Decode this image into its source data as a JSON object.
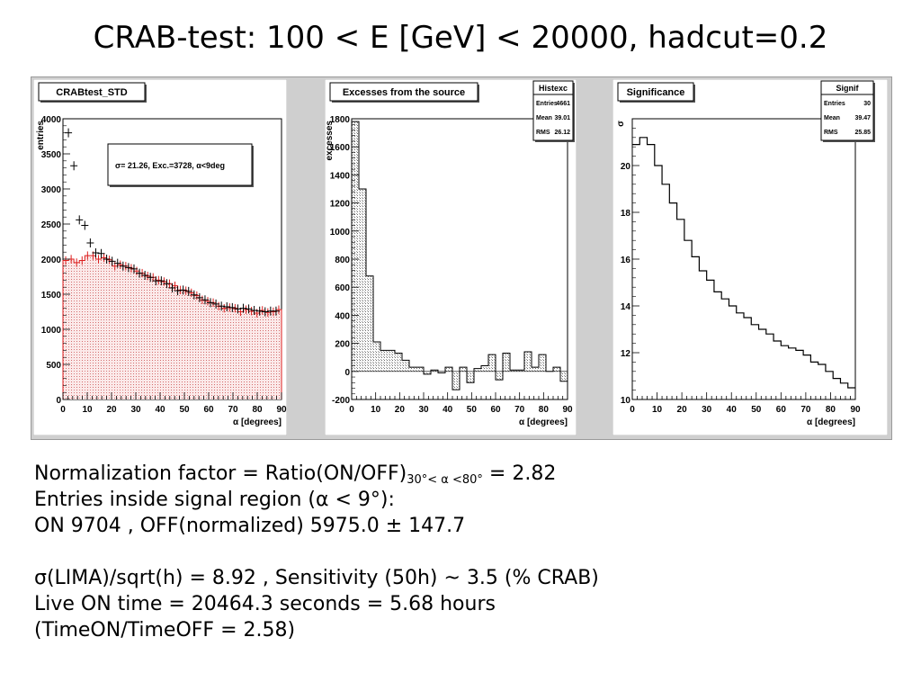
{
  "title": "CRAB-test: 100 < E [GeV] < 20000, hadcut=0.2",
  "chart_data": [
    {
      "type": "bar",
      "title": "CRABtest_STD",
      "xlabel": "α [degrees]",
      "ylabel": "entries",
      "xlim": [
        0,
        90
      ],
      "ylim": [
        0,
        4000
      ],
      "x_ticks": [
        0,
        10,
        20,
        30,
        40,
        50,
        60,
        70,
        80,
        90
      ],
      "y_ticks": [
        0,
        500,
        1000,
        1500,
        2000,
        2500,
        3000,
        3500,
        4000
      ],
      "annotation": "σ=    21.26, Exc.=3728, α<9deg",
      "colors": {
        "fill": "#f2c4c4",
        "line": "#dd1e1e",
        "points": "#000000"
      },
      "series": [
        {
          "values": [
            1980,
            2000,
            1950,
            1980,
            2050,
            2050,
            2000,
            2020,
            1990,
            1900,
            1920,
            1900,
            1870,
            1830,
            1800,
            1760,
            1740,
            1700,
            1680,
            1650,
            1620,
            1560,
            1550,
            1520,
            1480,
            1420,
            1400,
            1380,
            1330,
            1300,
            1310,
            1300,
            1250,
            1280,
            1260,
            1230,
            1270,
            1240,
            1250,
            1280
          ]
        },
        {
          "x": [
            2.25,
            4.5,
            6.75,
            9.0,
            11.25,
            13.5,
            15.75,
            18.0,
            20.25,
            22.5,
            24.75,
            27.0,
            29.25,
            31.5,
            33.75,
            36.0,
            38.25,
            40.5,
            42.75,
            45.0,
            47.25,
            49.5,
            51.75,
            54.0,
            56.25,
            58.5,
            60.75,
            63.0,
            65.25,
            67.5,
            69.75,
            72.0,
            74.25,
            76.5,
            78.75,
            81.0,
            83.25,
            85.5,
            87.75
          ],
          "values": [
            3800,
            3330,
            2560,
            2480,
            2230,
            2090,
            2080,
            2000,
            1970,
            1940,
            1900,
            1880,
            1860,
            1800,
            1770,
            1740,
            1690,
            1690,
            1650,
            1590,
            1550,
            1560,
            1540,
            1490,
            1450,
            1420,
            1380,
            1360,
            1330,
            1320,
            1310,
            1290,
            1300,
            1290,
            1270,
            1260,
            1250,
            1260,
            1260
          ]
        }
      ]
    },
    {
      "type": "bar",
      "title": "Excesses from the source",
      "xlabel": "α [degrees]",
      "ylabel": "excesses",
      "xlim": [
        0,
        90
      ],
      "ylim": [
        -200,
        1800
      ],
      "x_ticks": [
        0,
        10,
        20,
        30,
        40,
        50,
        60,
        70,
        80,
        90
      ],
      "y_ticks": [
        -200,
        0,
        200,
        400,
        600,
        800,
        1000,
        1200,
        1400,
        1600,
        1800
      ],
      "stats": {
        "name": "Histexc",
        "rows": [
          [
            "Entries",
            "4661"
          ],
          [
            "Mean",
            "39.01"
          ],
          [
            "RMS",
            "26.12"
          ]
        ]
      },
      "colors": {
        "fill": "#c8c8c8",
        "line": "#000000"
      },
      "series": [
        {
          "values": [
            1780,
            1300,
            680,
            210,
            150,
            150,
            130,
            80,
            30,
            30,
            -20,
            10,
            -10,
            30,
            -130,
            30,
            -80,
            20,
            40,
            120,
            -60,
            130,
            10,
            10,
            140,
            30,
            120,
            0,
            30,
            -70
          ]
        }
      ]
    },
    {
      "type": "line",
      "title": "Significance",
      "xlabel": "α [degrees]",
      "ylabel": "σ",
      "xlim": [
        0,
        90
      ],
      "ylim": [
        10,
        22
      ],
      "x_ticks": [
        0,
        10,
        20,
        30,
        40,
        50,
        60,
        70,
        80,
        90
      ],
      "y_ticks": [
        10,
        12,
        14,
        16,
        18,
        20
      ],
      "stats": {
        "name": "Signif",
        "rows": [
          [
            "Entries",
            "30"
          ],
          [
            "Mean",
            "39.47"
          ],
          [
            "RMS",
            "25.85"
          ]
        ]
      },
      "colors": {
        "line": "#000000"
      },
      "series": [
        {
          "values": [
            20.9,
            21.2,
            20.9,
            20.0,
            19.2,
            18.4,
            17.7,
            16.8,
            16.1,
            15.5,
            15.1,
            14.6,
            14.3,
            14.0,
            13.7,
            13.5,
            13.2,
            13.0,
            12.8,
            12.5,
            12.3,
            12.2,
            12.1,
            11.9,
            11.6,
            11.5,
            11.2,
            10.9,
            10.7,
            10.5
          ]
        }
      ]
    }
  ],
  "notes": {
    "norm_prefix": "Normalization factor = Ratio(ON/OFF)",
    "norm_sub": "30°< α <80°",
    "norm_value": " = 2.82",
    "entries_line": "Entries inside signal region (α < 9°):",
    "on_off_line": "ON 9704 ,  OFF(normalized) 5975.0 ± 147.7",
    "lima_line": "σ(LIMA)/sqrt(h) = 8.92 , Sensitivity (50h) ~ 3.5 (% CRAB)",
    "live_line": "Live ON time = 20464.3 seconds = 5.68 hours",
    "ratio_line": "(TimeON/TimeOFF = 2.58)"
  }
}
